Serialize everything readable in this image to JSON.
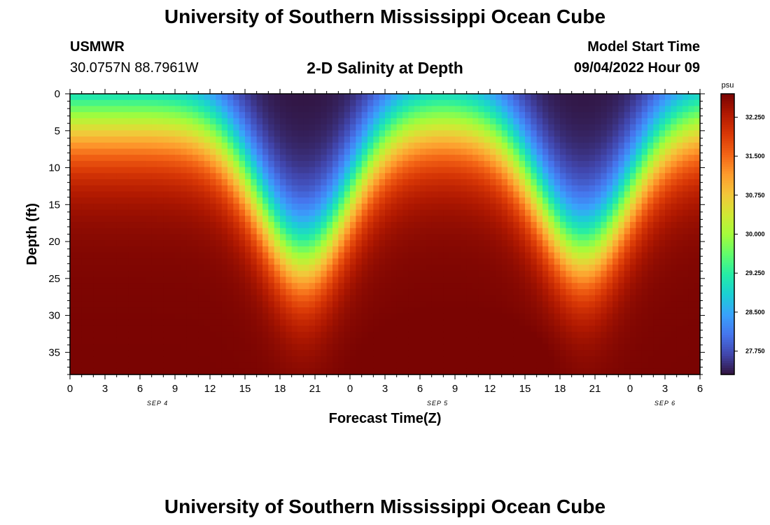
{
  "header": {
    "title": "University of Southern Mississippi Ocean Cube",
    "station_id": "USMWR",
    "station_coords": "30.0757N  88.7961W",
    "plot_title": "2-D Salinity at Depth",
    "model_label": "Model Start Time",
    "model_value": "09/04/2022 Hour 09"
  },
  "footer": {
    "title": "University of Southern Mississippi Ocean Cube"
  },
  "chart_data": {
    "type": "heatmap",
    "xlabel": "Forecast Time(Z)",
    "ylabel": "Depth (ft)",
    "x_ticks": [
      "0",
      "3",
      "6",
      "9",
      "12",
      "15",
      "18",
      "21",
      "0",
      "3",
      "6",
      "9",
      "12",
      "15",
      "18",
      "21",
      "0",
      "3",
      "6"
    ],
    "date_labels": [
      "SEP 4",
      "SEP 5",
      "SEP 6"
    ],
    "y_ticks": [
      "0",
      "5",
      "10",
      "15",
      "20",
      "25",
      "30",
      "35"
    ],
    "ylim": [
      0,
      38
    ],
    "colorbar": {
      "unit": "psu",
      "ticks": [
        "27.750",
        "28.500",
        "29.250",
        "30.000",
        "30.750",
        "31.500",
        "32.250"
      ],
      "range": [
        27.3,
        32.7
      ],
      "colormap": [
        "#30123b",
        "#4145ab",
        "#4675ed",
        "#39a2fc",
        "#1bcfd4",
        "#24eca6",
        "#61fc6c",
        "#a4fc3b",
        "#d1e834",
        "#f3c63a",
        "#fe9b2d",
        "#f36315",
        "#d93806",
        "#b11901",
        "#7a0402"
      ]
    },
    "pattern": {
      "description": "Salinity increases with depth; fresh surface lenses deepen near 18-21Z each day",
      "trough_hours": [
        20,
        44
      ],
      "trough_depth_ft": [
        19,
        18
      ],
      "min_salinity": 27.3,
      "max_salinity": 32.7
    }
  }
}
